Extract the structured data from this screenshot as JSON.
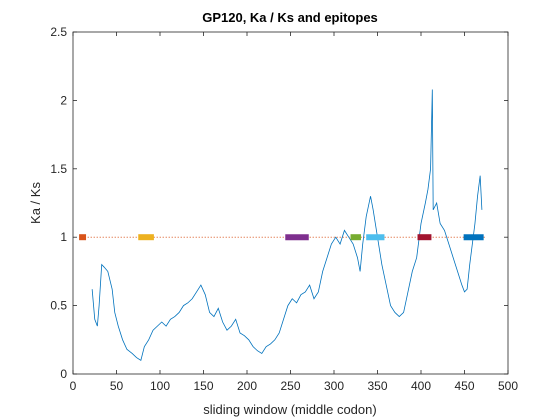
{
  "chart_data": {
    "type": "line",
    "title": "GP120, Ka / Ks and epitopes",
    "xlabel": "sliding window (middle codon)",
    "ylabel": "Ka / Ks",
    "xlim": [
      0,
      500
    ],
    "xticks": [
      0,
      50,
      100,
      150,
      200,
      250,
      300,
      350,
      400,
      450,
      500
    ],
    "ylim": [
      0,
      2.5
    ],
    "yticks": [
      0,
      0.5,
      1,
      1.5,
      2,
      2.5
    ],
    "x": [
      22,
      25,
      28,
      30,
      33,
      36,
      40,
      45,
      48,
      52,
      57,
      62,
      68,
      73,
      78,
      82,
      87,
      92,
      97,
      102,
      107,
      112,
      117,
      122,
      127,
      132,
      137,
      142,
      147,
      152,
      157,
      162,
      167,
      172,
      177,
      182,
      187,
      192,
      197,
      202,
      207,
      212,
      217,
      222,
      227,
      232,
      237,
      242,
      247,
      252,
      257,
      262,
      267,
      272,
      277,
      282,
      287,
      292,
      297,
      302,
      307,
      312,
      317,
      322,
      327,
      330,
      333,
      337,
      342,
      345,
      350,
      355,
      360,
      365,
      370,
      375,
      380,
      385,
      390,
      395,
      400,
      405,
      408,
      411,
      413,
      414,
      418,
      422,
      427,
      432,
      437,
      442,
      447,
      450,
      453,
      456,
      459,
      462,
      465,
      468,
      470
    ],
    "series": [
      {
        "color": "#0072bd",
        "values": [
          0.62,
          0.4,
          0.35,
          0.5,
          0.8,
          0.78,
          0.75,
          0.62,
          0.45,
          0.35,
          0.25,
          0.18,
          0.15,
          0.12,
          0.1,
          0.2,
          0.25,
          0.32,
          0.35,
          0.38,
          0.35,
          0.4,
          0.42,
          0.45,
          0.5,
          0.52,
          0.55,
          0.6,
          0.65,
          0.58,
          0.45,
          0.42,
          0.48,
          0.38,
          0.32,
          0.35,
          0.4,
          0.3,
          0.28,
          0.25,
          0.2,
          0.17,
          0.15,
          0.2,
          0.22,
          0.25,
          0.3,
          0.4,
          0.5,
          0.55,
          0.52,
          0.58,
          0.6,
          0.65,
          0.55,
          0.6,
          0.75,
          0.85,
          0.95,
          1.0,
          0.95,
          1.05,
          1.0,
          0.95,
          0.85,
          0.75,
          0.95,
          1.15,
          1.3,
          1.2,
          1.0,
          0.8,
          0.65,
          0.5,
          0.45,
          0.42,
          0.45,
          0.6,
          0.75,
          0.85,
          1.1,
          1.25,
          1.35,
          1.5,
          2.08,
          1.2,
          1.25,
          1.1,
          1.05,
          0.95,
          0.85,
          0.75,
          0.65,
          0.6,
          0.62,
          0.8,
          0.95,
          1.1,
          1.3,
          1.45,
          1.2
        ]
      }
    ],
    "threshold": {
      "value": 1,
      "x": [
        10,
        475
      ],
      "color": "#d95319"
    },
    "epitopes": [
      {
        "x": [
          7,
          15
        ],
        "value": 1,
        "color": "#d95319"
      },
      {
        "x": [
          75,
          93
        ],
        "value": 1,
        "color": "#edb120"
      },
      {
        "x": [
          244,
          271
        ],
        "value": 1,
        "color": "#7e2f8e"
      },
      {
        "x": [
          319,
          331
        ],
        "value": 1,
        "color": "#77ac30"
      },
      {
        "x": [
          337,
          358
        ],
        "value": 1,
        "color": "#4dbeee"
      },
      {
        "x": [
          396,
          412
        ],
        "value": 1,
        "color": "#a2142f"
      },
      {
        "x": [
          449,
          472
        ],
        "value": 1,
        "color": "#0072bd"
      }
    ]
  }
}
